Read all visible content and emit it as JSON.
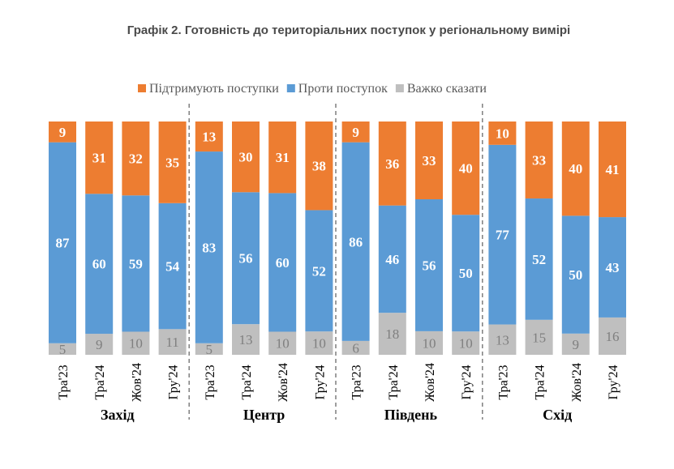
{
  "chart_data": {
    "type": "stacked-bar",
    "title": "Графік 2. Готовність до територіальних поступок у регіональному вимірі",
    "categories": [
      "Тра'23",
      "Тра'24",
      "Жов'24",
      "Гру'24",
      "Тра'23",
      "Тра'24",
      "Жов'24",
      "Гру'24",
      "Тра'23",
      "Тра'24",
      "Жов'24",
      "Гру'24",
      "Тра'23",
      "Тра'24",
      "Жов'24",
      "Гру'24"
    ],
    "groups": [
      "Захід",
      "Центр",
      "Південь",
      "Схід"
    ],
    "series": [
      {
        "name": "Підтримують поступки",
        "color": "#ed7d31",
        "values": [
          9,
          31,
          32,
          35,
          13,
          30,
          31,
          38,
          9,
          36,
          33,
          40,
          10,
          33,
          40,
          41
        ]
      },
      {
        "name": "Проти поступок",
        "color": "#5b9bd5",
        "values": [
          87,
          60,
          59,
          54,
          83,
          56,
          60,
          52,
          86,
          46,
          56,
          50,
          77,
          52,
          50,
          43
        ]
      },
      {
        "name": "Важко сказати",
        "color": "#bfbfbf",
        "values": [
          5,
          9,
          10,
          11,
          5,
          13,
          10,
          10,
          6,
          18,
          10,
          10,
          13,
          15,
          9,
          16
        ]
      }
    ],
    "stack_order": [
      2,
      1,
      0
    ],
    "legend": "top"
  }
}
